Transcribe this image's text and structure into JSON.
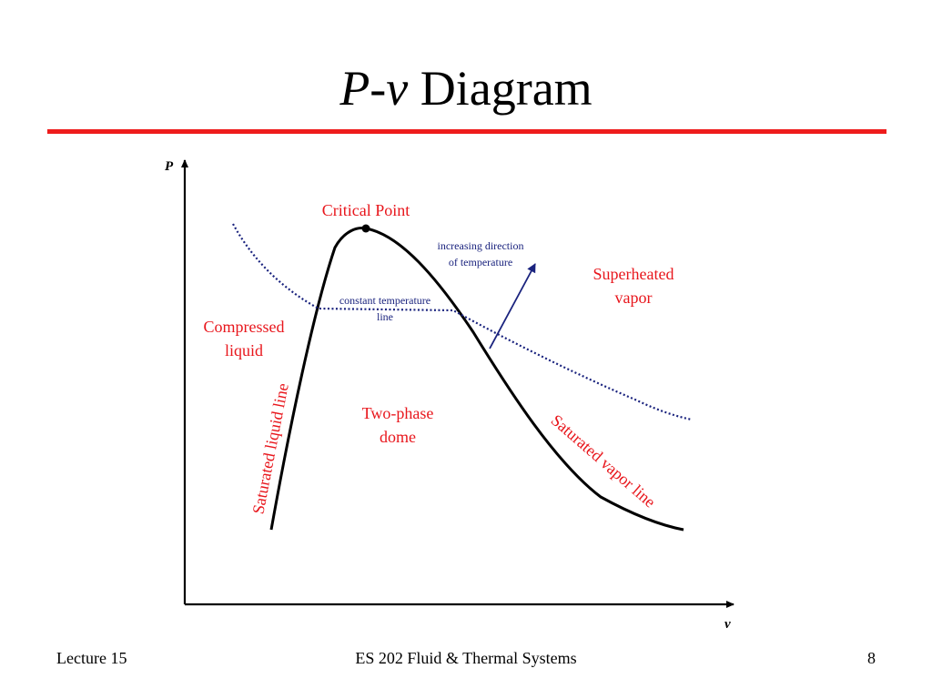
{
  "slide": {
    "title_italic": "P-v",
    "title_rest": " Diagram",
    "rule_color": "#ee1c1c"
  },
  "diagram": {
    "axis_p": "P",
    "axis_v": "v",
    "labels": {
      "critical_point": "Critical Point",
      "increasing_line1": "increasing direction",
      "increasing_line2": "of temperature",
      "superheated_line1": "Superheated",
      "superheated_line2": "vapor",
      "constant_line1": "constant temperature",
      "constant_line2": "line",
      "compressed_line1": "Compressed",
      "compressed_line2": "liquid",
      "saturated_liquid": "Saturated liquid line",
      "two_phase_line1": "Two-phase",
      "two_phase_line2": "dome",
      "saturated_vapor": "Saturated vapor line"
    },
    "colors": {
      "red_labels": "#e8161c",
      "blue_lines": "#1a237e",
      "curve": "#000000"
    }
  },
  "footer": {
    "left": "Lecture 15",
    "center": "ES 202  Fluid & Thermal Systems",
    "right": "8"
  }
}
